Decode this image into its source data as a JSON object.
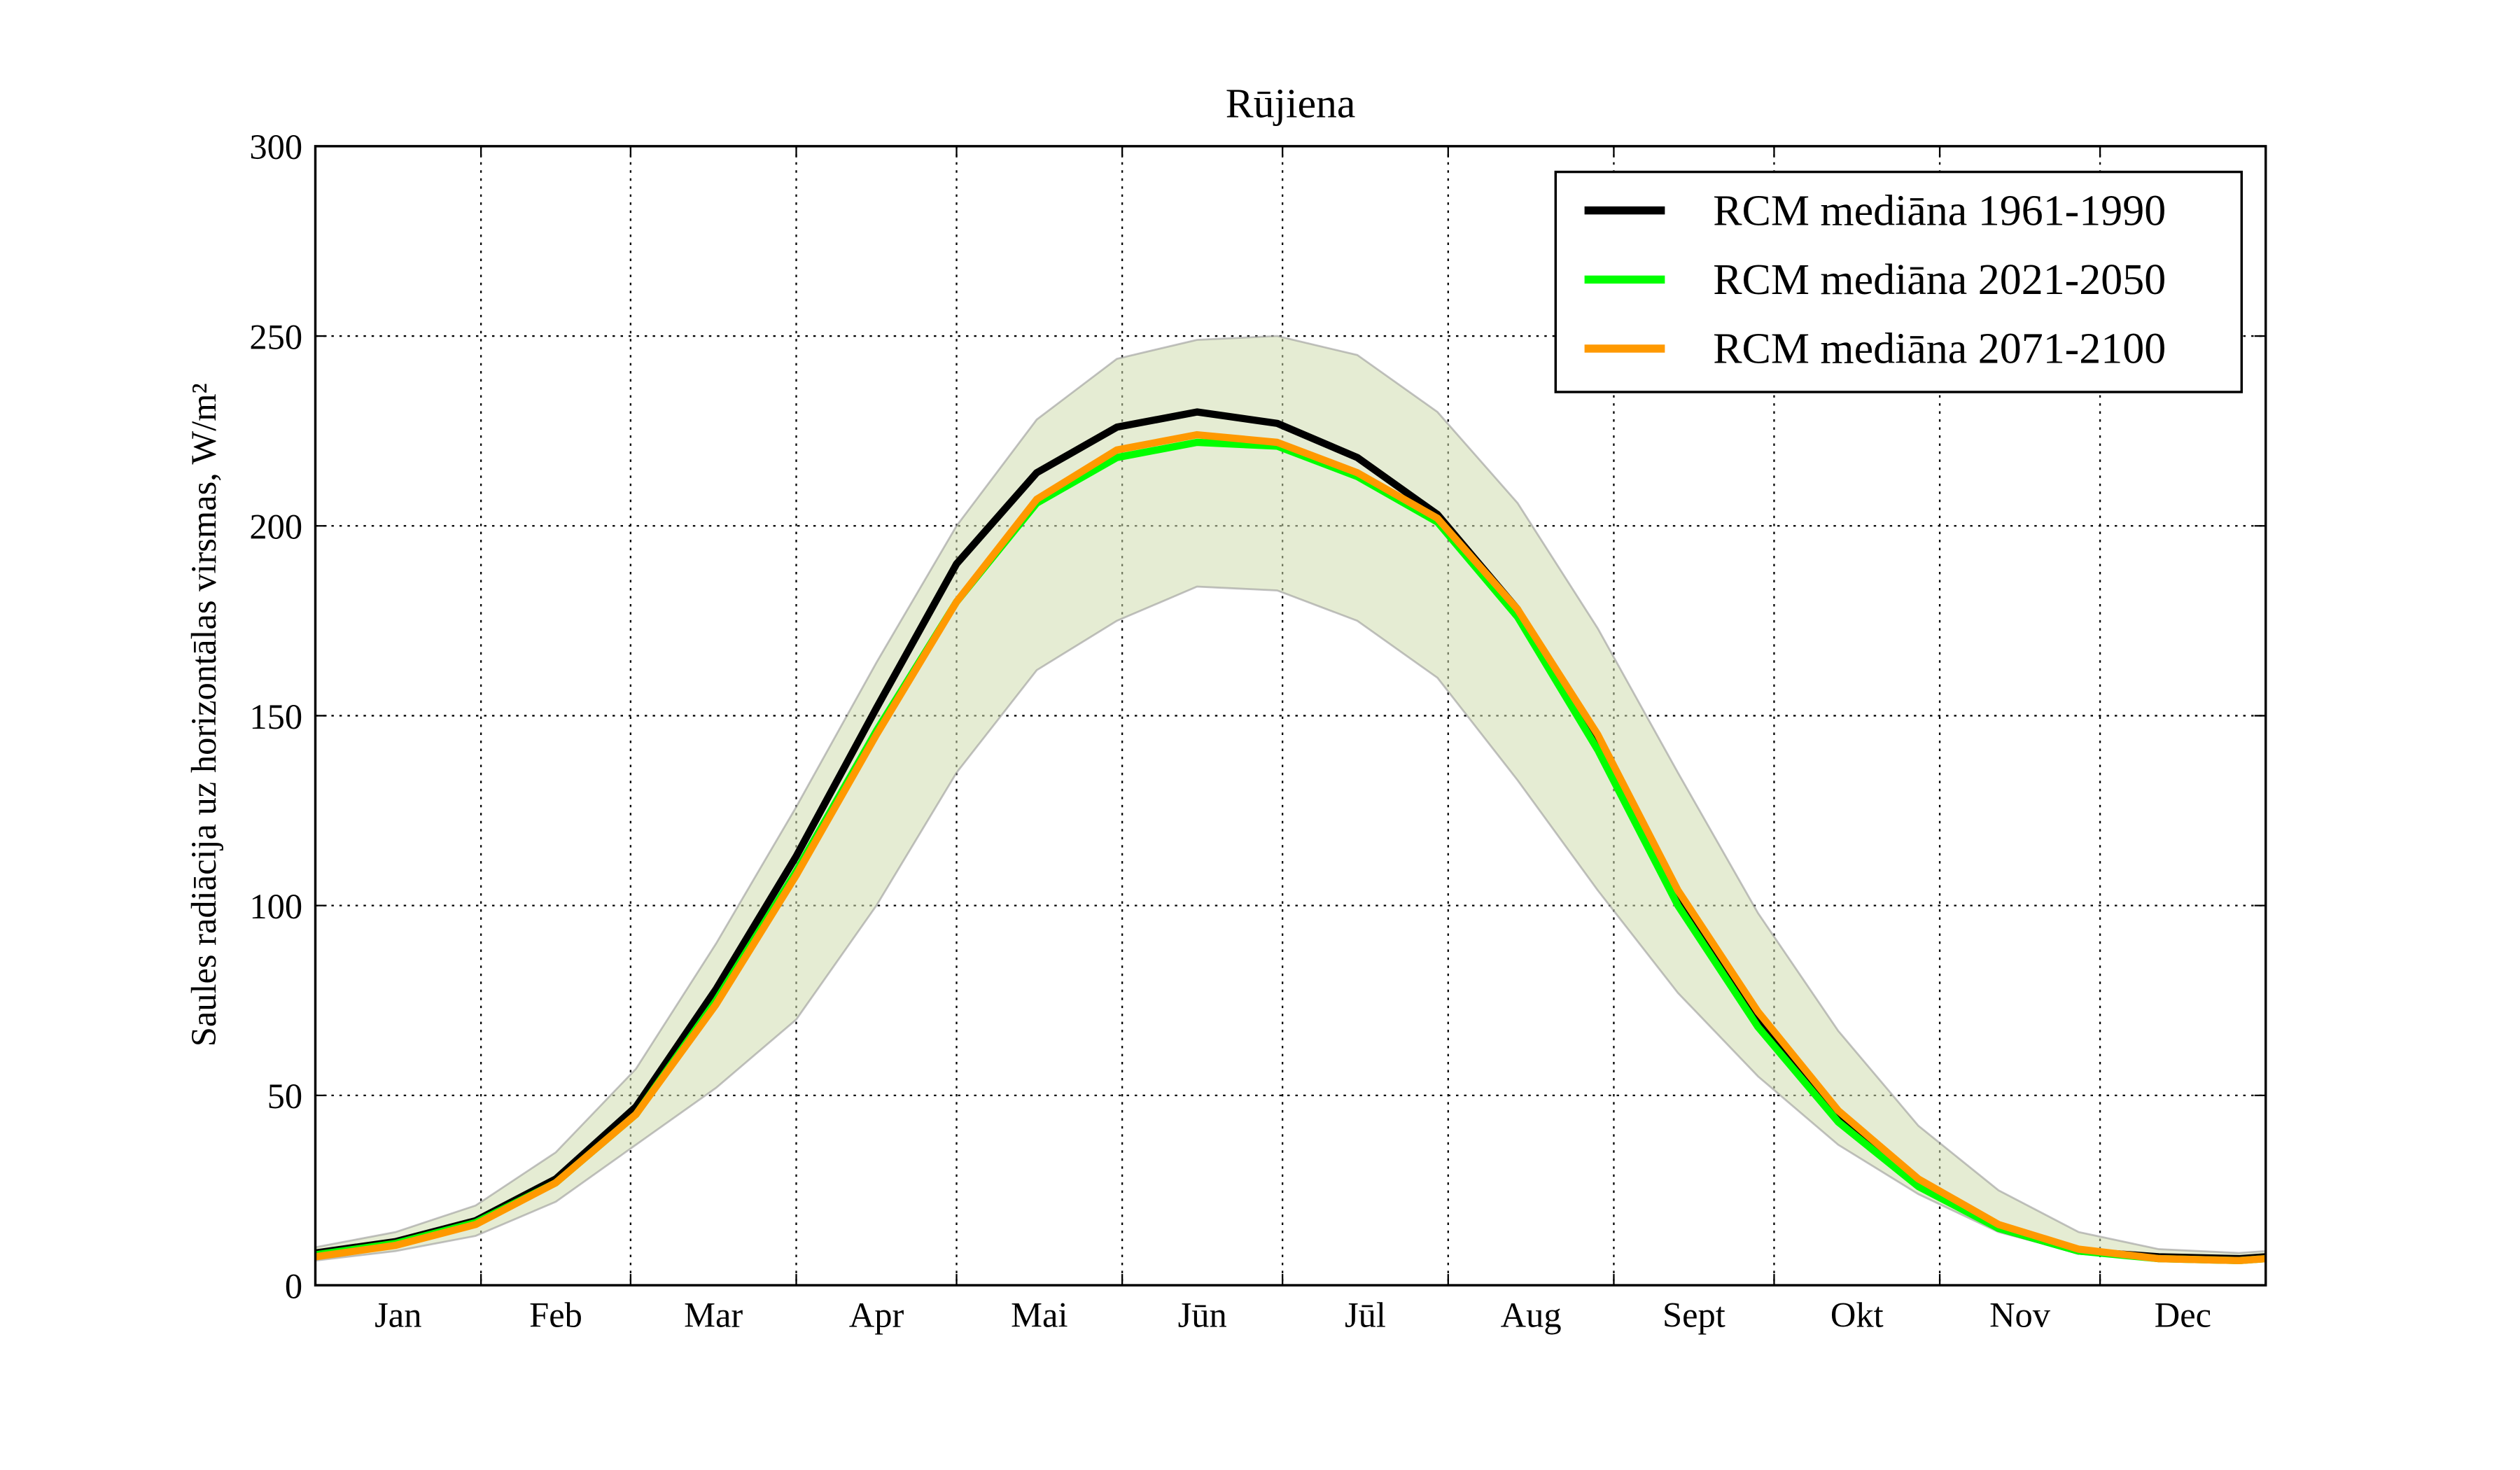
{
  "chart_data": {
    "type": "line",
    "title": "Rūjiena",
    "ylabel": "Saules radiācija uz horizontālas virsmas, W/m²",
    "x": [
      0,
      15,
      30,
      45,
      60,
      75,
      90,
      105,
      120,
      135,
      150,
      165,
      180,
      195,
      210,
      225,
      240,
      255,
      270,
      285,
      300,
      315,
      330,
      345,
      360,
      365
    ],
    "xlim": [
      0,
      365
    ],
    "xticks": [
      {
        "value": 15.5,
        "label": "Jan"
      },
      {
        "value": 45,
        "label": "Feb"
      },
      {
        "value": 74.5,
        "label": "Mar"
      },
      {
        "value": 105,
        "label": "Apr"
      },
      {
        "value": 135.5,
        "label": "Mai"
      },
      {
        "value": 166,
        "label": "Jūn"
      },
      {
        "value": 196.5,
        "label": "Jūl"
      },
      {
        "value": 227.5,
        "label": "Aug"
      },
      {
        "value": 258,
        "label": "Sept"
      },
      {
        "value": 288.5,
        "label": "Okt"
      },
      {
        "value": 319,
        "label": "Nov"
      },
      {
        "value": 349.5,
        "label": "Dec"
      }
    ],
    "x_gridlines": [
      31,
      59,
      90,
      120,
      151,
      181,
      212,
      243,
      273,
      304,
      334
    ],
    "ylim": [
      0,
      300
    ],
    "yticks": [
      0,
      50,
      100,
      150,
      200,
      250,
      300
    ],
    "grid": true,
    "legend": "upper right",
    "band": {
      "color": "#cfdcae",
      "upper": [
        10,
        14,
        21,
        35,
        57,
        90,
        126,
        164,
        200,
        228,
        244,
        249,
        250,
        245,
        230,
        206,
        173,
        135,
        98,
        67,
        42,
        25,
        14,
        9.5,
        8.5,
        9
      ],
      "lower": [
        6.5,
        9,
        13,
        22,
        37,
        52,
        70,
        100,
        135,
        162,
        175,
        184,
        183,
        175,
        160,
        133,
        104,
        77,
        55,
        37,
        24,
        14,
        8.5,
        6.5,
        6,
        6.5
      ]
    },
    "series": [
      {
        "name": "RCM mediāna 1961-1990",
        "color": "#000000",
        "values": [
          8.5,
          11.5,
          17,
          28,
          47,
          78,
          113,
          152,
          190,
          214,
          226,
          230,
          227,
          218,
          203,
          178,
          142,
          101,
          70,
          44,
          27,
          15,
          9,
          7.5,
          7,
          7.5
        ]
      },
      {
        "name": "RCM mediāna 2021-2050",
        "color": "#00ff00",
        "values": [
          8,
          11,
          16.5,
          27,
          45,
          75,
          109,
          146,
          180,
          206,
          218,
          222,
          221,
          213,
          201,
          176,
          141,
          100,
          68,
          43,
          26,
          15,
          9,
          7,
          6.5,
          7
        ]
      },
      {
        "name": "RCM mediāna 2071-2100",
        "color": "#ff9900",
        "values": [
          7.5,
          10.5,
          16,
          27,
          45,
          74,
          108,
          145,
          180,
          207,
          220,
          224,
          222,
          214,
          202,
          178,
          145,
          104,
          72,
          46,
          28,
          16,
          9.5,
          7,
          6.5,
          7
        ]
      }
    ]
  }
}
